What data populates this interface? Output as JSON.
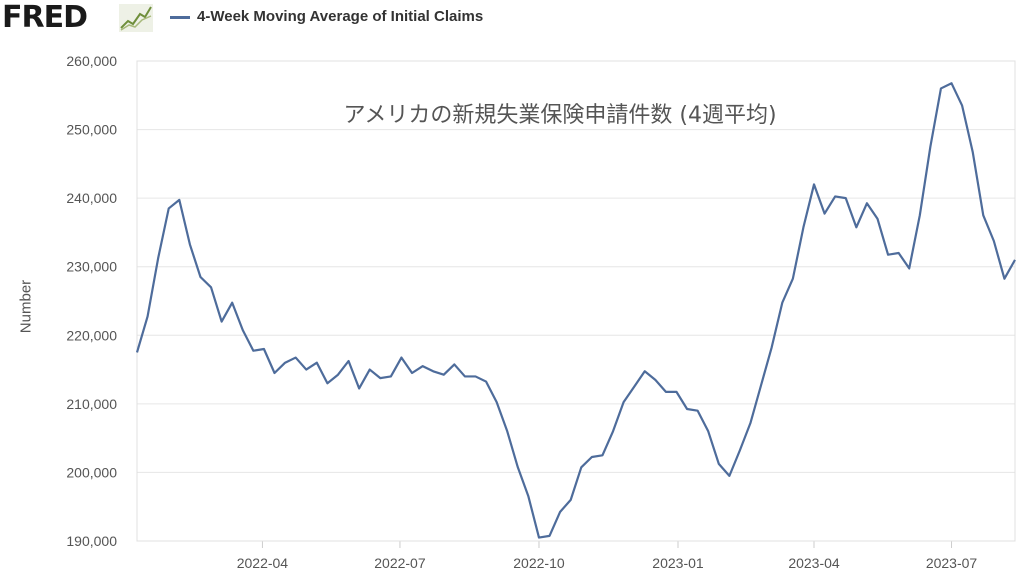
{
  "header": {
    "logo": "FRED",
    "logo_icon": "line-chart-icon",
    "series_title": "4-Week Moving Average of Initial Claims"
  },
  "chart_data": {
    "type": "line",
    "ylabel": "Number",
    "annotation": "アメリカの新規失業保険申請件数 (4週平均)",
    "ylim": [
      190000,
      260000
    ],
    "yticks": [
      190000,
      200000,
      210000,
      220000,
      230000,
      240000,
      250000,
      260000
    ],
    "ytick_labels": [
      "190,000",
      "200,000",
      "210,000",
      "220,000",
      "230,000",
      "240,000",
      "250,000",
      "260,000"
    ],
    "xticks": [
      "2022-04",
      "2022-07",
      "2022-10",
      "2023-01",
      "2023-04",
      "2023-07"
    ],
    "line_color": "#4e6c9b",
    "grid": true,
    "series": [
      {
        "name": "4-Week Moving Average of Initial Claims",
        "start": "2022-01-08",
        "interval": "weekly",
        "values": [
          217500,
          222750,
          231250,
          238500,
          239750,
          233250,
          228500,
          227000,
          222000,
          224750,
          220750,
          217750,
          218000,
          214500,
          216000,
          216750,
          215000,
          216000,
          213000,
          214250,
          216250,
          212250,
          215000,
          213750,
          214000,
          216750,
          214500,
          215500,
          214750,
          214250,
          215750,
          214000,
          214000,
          213250,
          210250,
          206000,
          200750,
          196500,
          190500,
          190750,
          194250,
          196000,
          200750,
          202250,
          202500,
          206000,
          210250,
          212500,
          214750,
          213500,
          211750,
          211750,
          209250,
          209000,
          206000,
          201250,
          199500,
          203250,
          207250,
          212750,
          218250,
          224750,
          228250,
          235750,
          242000,
          237750,
          240250,
          240000,
          235750,
          239250,
          237000,
          231750,
          232000,
          229750,
          237500,
          247500,
          256000,
          256750,
          253500,
          246750,
          237500,
          233750,
          228250,
          231000
        ]
      }
    ]
  }
}
